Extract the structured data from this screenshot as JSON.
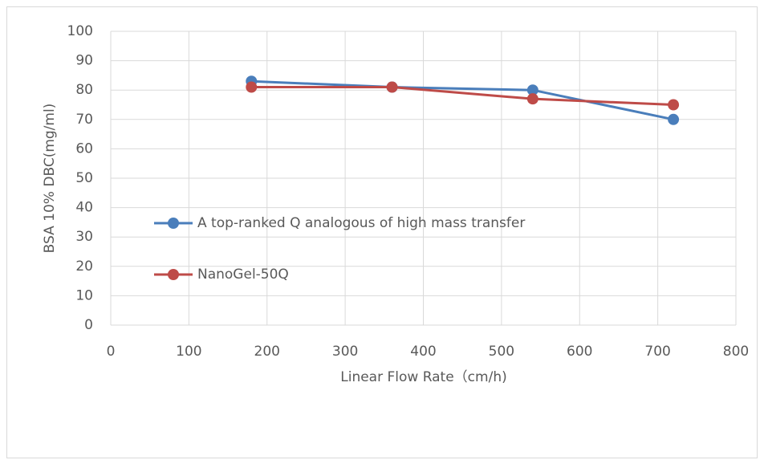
{
  "chart_data": {
    "type": "line",
    "x_label": "Linear Flow Rate（cm/h)",
    "y_label": "BSA 10% DBC(mg/ml)",
    "x": [
      180,
      360,
      540,
      720
    ],
    "series": [
      {
        "name": "A top-ranked Q analogous of high mass transfer",
        "color": "#4a7ebb",
        "values": [
          83,
          81,
          80,
          70
        ]
      },
      {
        "name": "NanoGel-50Q",
        "color": "#be4b48",
        "values": [
          81,
          81,
          77,
          75
        ]
      }
    ],
    "xlim": [
      0,
      800
    ],
    "xticks": [
      0,
      100,
      200,
      300,
      400,
      500,
      600,
      700,
      800
    ],
    "ylim": [
      0,
      100
    ],
    "yticks": [
      0,
      10,
      20,
      30,
      40,
      50,
      60,
      70,
      80,
      90,
      100
    ],
    "grid": true,
    "legend_position": "center-left"
  }
}
